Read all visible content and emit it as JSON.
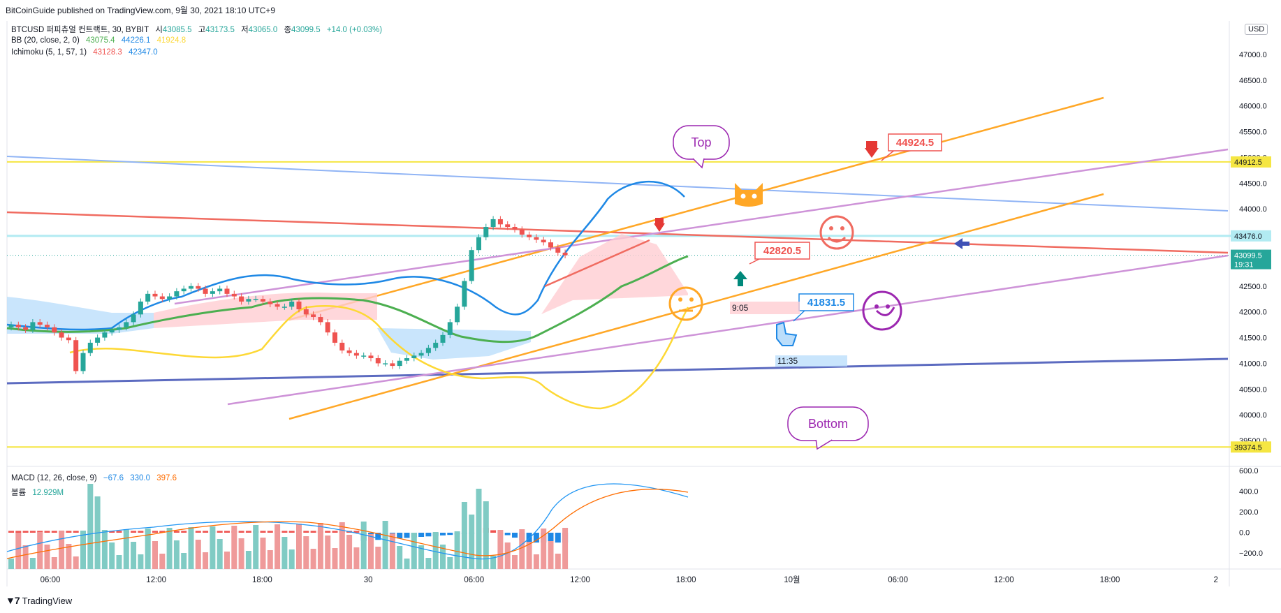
{
  "header": {
    "published": "BitCoinGuide published on TradingView.com, 9월 30, 2021 18:10 UTC+9"
  },
  "legend": {
    "symbol": "BTCUSD 퍼피츄얼 컨트랙트, 30, BYBIT",
    "o_label": "시",
    "o": "43085.5",
    "h_label": "고",
    "h": "43173.5",
    "l_label": "저",
    "l": "43065.0",
    "c_label": "종",
    "c": "43099.5",
    "change": "+14.0 (+0.03%)",
    "bb_label": "BB (20, close, 2, 0)",
    "bb_basis": "43075.4",
    "bb_upper": "44226.1",
    "bb_lower": "41924.8",
    "ichi_label": "Ichimoku (5, 1, 57, 1)",
    "ichi_a": "43128.3",
    "ichi_b": "42347.0",
    "macd_label": "MACD (12, 26, close, 9)",
    "macd_hist": "−67.6",
    "macd": "330.0",
    "macd_signal": "397.6",
    "vol_label": "볼륨",
    "vol": "12.929M"
  },
  "currency": "USD",
  "footer": {
    "brand": "TradingView"
  },
  "colors": {
    "up": "#26a69a",
    "down": "#ef5350",
    "bb_upper": "#1e88e5",
    "bb_basis": "#4caf50",
    "bb_lower": "#fdd835",
    "orange": "#ffa726",
    "pink": "#ce93d8",
    "red_line": "#f06b60",
    "blue_line": "#90b4f5",
    "navy": "#5c6bc0",
    "yellow": "#f5e642"
  },
  "chart_data": {
    "type": "candlestick",
    "price_axis": {
      "min": 39500,
      "max": 47000,
      "ticks": [
        "47000.0",
        "46500.0",
        "46000.0",
        "45500.0",
        "45000.0",
        "44500.0",
        "44000.0",
        "43500.0",
        "43000.0",
        "42500.0",
        "42000.0",
        "41500.0",
        "41000.0",
        "40500.0",
        "40000.0",
        "39500.0"
      ]
    },
    "time_axis": {
      "labels": [
        "06:00",
        "12:00",
        "18:00",
        "30",
        "06:00",
        "12:00",
        "18:00",
        "10월",
        "06:00",
        "12:00",
        "18:00",
        "2"
      ]
    },
    "price_labels": [
      {
        "value": "44912.5",
        "kind": "yellow"
      },
      {
        "value": "43476.0",
        "kind": "lightblue"
      },
      {
        "value": "43099.5",
        "sub": "19:31",
        "kind": "current"
      },
      {
        "value": "39374.5",
        "kind": "yellow"
      }
    ],
    "ohlc_close_path": [
      41750,
      41700,
      41650,
      41800,
      41750,
      41700,
      41600,
      41500,
      41450,
      40850,
      41200,
      41400,
      41500,
      41600,
      41650,
      41700,
      41800,
      41950,
      42200,
      42350,
      42300,
      42250,
      42300,
      42400,
      42450,
      42500,
      42450,
      42350,
      42400,
      42450,
      42350,
      42300,
      42200,
      42250,
      42250,
      42200,
      42150,
      42100,
      42100,
      42200,
      42050,
      41950,
      41900,
      41800,
      41600,
      41400,
      41250,
      41200,
      41150,
      41150,
      41100,
      41000,
      41000,
      40950,
      41050,
      41100,
      41150,
      41200,
      41300,
      41400,
      41550,
      41800,
      42100,
      42600,
      43200,
      43450,
      43650,
      43800,
      43700,
      43650,
      43600,
      43500,
      43450,
      43400,
      43350,
      43250,
      43150,
      43100
    ],
    "annotations": {
      "top": "Top",
      "bottom": "Bottom",
      "price1": "44924.5",
      "price2": "42820.5",
      "price3": "41831.5",
      "time1": "9:05",
      "time2": "11:35"
    },
    "macd": {
      "axis_ticks": [
        "600.0",
        "400.0",
        "200.0",
        "0.0",
        "−200.0"
      ]
    }
  }
}
